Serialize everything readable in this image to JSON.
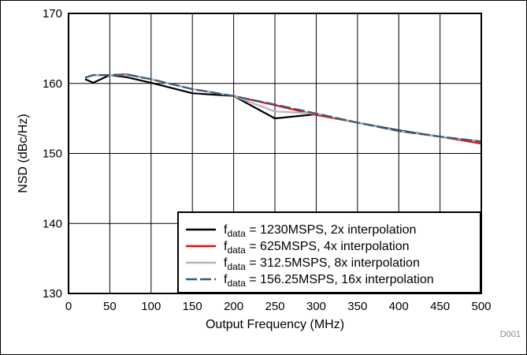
{
  "figure_id": "D001",
  "chart_data": {
    "type": "line",
    "title": "",
    "xlabel": "Output Frequency (MHz)",
    "ylabel": "NSD (dBc/Hz)",
    "xlim": [
      0,
      500
    ],
    "ylim": [
      130,
      170
    ],
    "xticks": [
      0,
      50,
      100,
      150,
      200,
      250,
      300,
      350,
      400,
      450,
      500
    ],
    "yticks": [
      130,
      140,
      150,
      160,
      170
    ],
    "grid": true,
    "legend_position": "bottom-right",
    "series": [
      {
        "name_main": "f",
        "name_sub": "data",
        "name_rest": " = 1230MSPS, 2x interpolation",
        "color": "#000000",
        "dash": "solid",
        "x": [
          20,
          30,
          50,
          70,
          100,
          150,
          200,
          250,
          300,
          350,
          400,
          450,
          500
        ],
        "y": [
          160.6,
          160.1,
          161.2,
          160.9,
          160.1,
          158.6,
          158.2,
          155.0,
          155.6,
          154.4,
          153.3,
          152.4,
          151.7
        ]
      },
      {
        "name_main": "f",
        "name_sub": "data",
        "name_rest": " = 625MSPS, 4x interpolation",
        "color": "#ff0000",
        "dash": "solid",
        "x": [
          20,
          30,
          50,
          70,
          100,
          150,
          200,
          250,
          300,
          350,
          400,
          450,
          500
        ],
        "y": [
          160.8,
          161.2,
          161.2,
          161.3,
          160.6,
          159.2,
          158.2,
          156.9,
          155.5,
          154.4,
          153.2,
          152.4,
          151.4
        ]
      },
      {
        "name_main": "f",
        "name_sub": "data",
        "name_rest": " = 312.5MSPS, 8x interpolation",
        "color": "#b4b4b4",
        "dash": "solid",
        "x": [
          20,
          30,
          50,
          70,
          100,
          150,
          200,
          250,
          300,
          350,
          400,
          450,
          500
        ],
        "y": [
          160.8,
          161.2,
          161.2,
          161.2,
          160.6,
          159.2,
          158.2,
          156.0,
          155.7,
          154.4,
          153.2,
          152.4,
          151.7
        ]
      },
      {
        "name_main": "f",
        "name_sub": "data",
        "name_rest": " = 156.25MSPS, 16x interpolation",
        "color": "#2e5f7f",
        "dash": "dashed",
        "x": [
          20,
          30,
          50,
          70,
          100,
          150,
          200,
          250,
          300,
          350,
          400,
          450,
          500
        ],
        "y": [
          160.8,
          161.2,
          161.2,
          161.3,
          160.6,
          159.2,
          158.2,
          157.0,
          155.7,
          154.4,
          153.2,
          152.4,
          151.7
        ]
      }
    ]
  }
}
